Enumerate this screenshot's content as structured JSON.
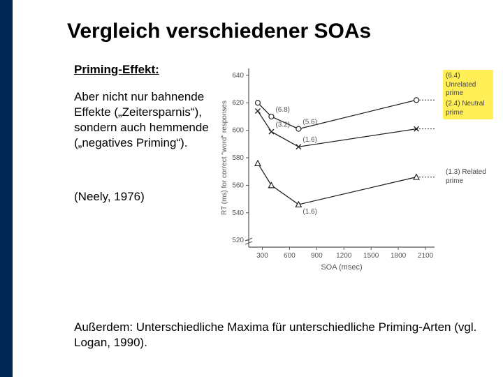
{
  "title": "Vergleich verschiedener SOAs",
  "subhead": "Priming-Effekt:",
  "para": "Aber nicht nur bahnende Effekte („Zeitersparnis“), sondern auch hemmende („negatives Priming“).",
  "cite": "(Neely, 1976)",
  "footer": "Außerdem: Unterschiedliche Maxima für unterschiedliche Priming-Arten (vgl. Logan, 1990).",
  "chart": {
    "type": "line",
    "x": {
      "label": "SOA (msec)",
      "ticks": [
        300,
        600,
        900,
        1200,
        1500,
        1800,
        2100
      ],
      "lim": [
        150,
        2200
      ]
    },
    "y": {
      "label": "RT (ms) for correct \"word\" responses",
      "ticks": [
        520,
        540,
        560,
        580,
        600,
        620,
        640
      ],
      "lim": [
        515,
        645
      ],
      "break": true
    },
    "series": [
      {
        "id": "unrelated",
        "marker": "circle",
        "label": "(6.4) Unrelated prime",
        "points": [
          [
            250,
            620
          ],
          [
            400,
            610
          ],
          [
            700,
            601
          ],
          [
            2000,
            622
          ]
        ],
        "ptlabels": {
          "400": "(6.8)",
          "700": "(5.6)"
        }
      },
      {
        "id": "neutral",
        "marker": "x",
        "label": "(2.4) Neutral prime",
        "points": [
          [
            250,
            614
          ],
          [
            400,
            599
          ],
          [
            700,
            588
          ],
          [
            2000,
            601
          ]
        ],
        "ptlabels": {
          "400": "(3.2)",
          "700": "(1.6)"
        }
      },
      {
        "id": "related",
        "marker": "triangle",
        "label": "(1.3) Related prime",
        "points": [
          [
            250,
            576
          ],
          [
            400,
            560
          ],
          [
            700,
            546
          ],
          [
            2000,
            566
          ]
        ],
        "ptlabels": {
          "700": "(1.6)"
        }
      }
    ],
    "colors": {
      "axis": "#555555",
      "line": "#222222",
      "highlight": "#ffee55",
      "bg": "#ffffff"
    }
  }
}
